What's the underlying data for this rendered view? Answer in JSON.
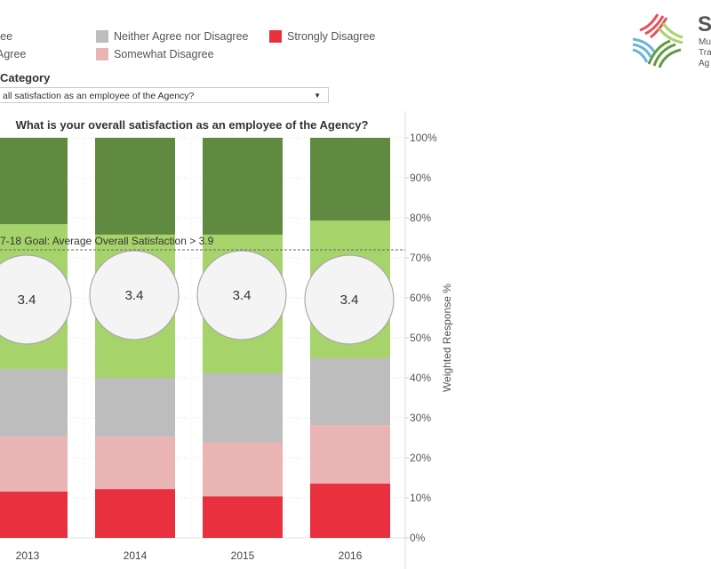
{
  "legend": [
    {
      "label": "ree",
      "color": "#5f8a3f"
    },
    {
      "label": "Agree",
      "color": "#a6d36a"
    },
    {
      "label": "Neither Agree nor Disagree",
      "color": "#bdbdbd"
    },
    {
      "label": "Somewhat Disagree",
      "color": "#eab4b4"
    },
    {
      "label": "Strongly Disagree",
      "color": "#e8303f"
    }
  ],
  "filter": {
    "label": "Category",
    "value": "all satisfaction as an employee of the Agency?"
  },
  "logo": {
    "text": "S",
    "lines": [
      "Mu",
      "Tra",
      "Ag"
    ]
  },
  "chart_data": {
    "type": "bar",
    "title": "What is your overall satisfaction as an employee of the Agency?",
    "ylabel": "Weighted Response %",
    "ylim": [
      0,
      100
    ],
    "yticks": [
      "0%",
      "10%",
      "20%",
      "30%",
      "40%",
      "50%",
      "60%",
      "70%",
      "80%",
      "90%",
      "100%"
    ],
    "categories": [
      "2013",
      "2014",
      "2015",
      "2016"
    ],
    "series": [
      {
        "name": "Strongly Disagree",
        "color": "#e8303f",
        "values": [
          11.6,
          12.2,
          10.4,
          13.6
        ]
      },
      {
        "name": "Somewhat Disagree",
        "color": "#eab4b4",
        "values": [
          13.7,
          13.1,
          13.4,
          14.6
        ]
      },
      {
        "name": "Neither Agree nor Disagree",
        "color": "#bdbdbd",
        "values": [
          16.9,
          14.7,
          17.3,
          16.7
        ]
      },
      {
        "name": "Somewhat Agree",
        "color": "#a6d36a",
        "values": [
          36.2,
          35.8,
          34.7,
          34.4
        ]
      },
      {
        "name": "Strongly Agree",
        "color": "#5f8a3f",
        "values": [
          21.6,
          24.2,
          24.2,
          20.7
        ]
      }
    ],
    "averages": [
      "3.4",
      "3.4",
      "3.4",
      "3.4"
    ],
    "goal": {
      "value": 72,
      "label": "7-18 Goal: Average Overall Satisfaction > 3.9"
    }
  }
}
